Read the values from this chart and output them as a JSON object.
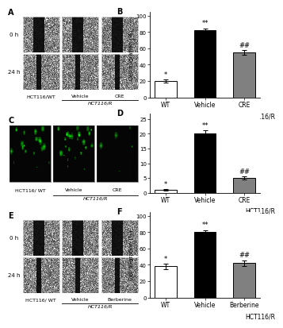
{
  "panel_B": {
    "categories": [
      "WT",
      "Vehicle",
      "CRE"
    ],
    "values": [
      20,
      82,
      55
    ],
    "errors": [
      2,
      2.5,
      3
    ],
    "colors": [
      "white",
      "black",
      "#808080"
    ],
    "ylabel": "Cell migration (%)",
    "xlabel": "HCT116/R",
    "ylim": [
      0,
      105
    ],
    "yticks": [
      0,
      20,
      40,
      60,
      80,
      100
    ],
    "ann_vehicle": "**",
    "ann_cre": "##",
    "ann_wt": "*",
    "title": "B"
  },
  "panel_D": {
    "categories": [
      "WT",
      "Vehicle",
      "CRE"
    ],
    "values": [
      1,
      20,
      5
    ],
    "errors": [
      0.3,
      1.2,
      0.6
    ],
    "colors": [
      "white",
      "black",
      "#808080"
    ],
    "ylabel": "Cell invasion (folds)",
    "xlabel": "HCT116/R",
    "ylim": [
      0,
      27
    ],
    "yticks": [
      0,
      5,
      10,
      15,
      20,
      25
    ],
    "ann_vehicle": "**",
    "ann_cre": "##",
    "ann_wt": "*",
    "title": "D"
  },
  "panel_F": {
    "categories": [
      "WT",
      "Vehicle",
      "Berberine"
    ],
    "values": [
      38,
      80,
      42
    ],
    "errors": [
      3,
      2.5,
      3.5
    ],
    "colors": [
      "white",
      "black",
      "#808080"
    ],
    "ylabel": "Cell migration (%)",
    "xlabel": "HCT116/R",
    "ylim": [
      0,
      105
    ],
    "yticks": [
      0,
      20,
      40,
      60,
      80,
      100
    ],
    "ann_vehicle": "**",
    "ann_cre": "##",
    "ann_wt": "*",
    "title": "F"
  }
}
